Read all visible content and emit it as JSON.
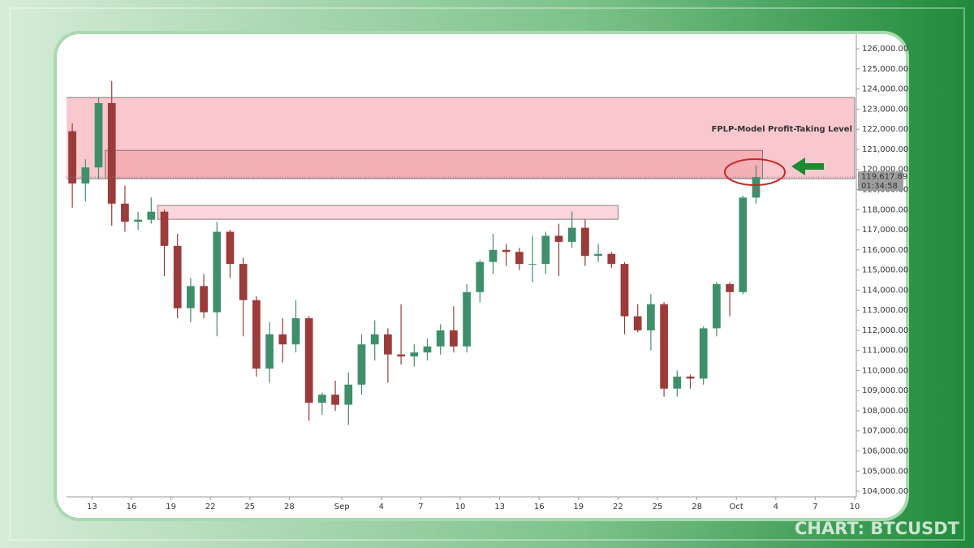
{
  "chart_data": {
    "type": "candlestick",
    "symbol_caption": "CHART: BTCUSDT",
    "x": [
      "Aug 11",
      "Aug 12",
      "Aug 13",
      "Aug 14",
      "Aug 15",
      "Aug 16",
      "Aug 17",
      "Aug 18",
      "Aug 19",
      "Aug 20",
      "Aug 21",
      "Aug 22",
      "Aug 23",
      "Aug 24",
      "Aug 25",
      "Aug 26",
      "Aug 27",
      "Aug 28",
      "Aug 29",
      "Aug 30",
      "Aug 31",
      "Sep 1",
      "Sep 2",
      "Sep 3",
      "Sep 4",
      "Sep 5",
      "Sep 6",
      "Sep 7",
      "Sep 8",
      "Sep 9",
      "Sep 10",
      "Sep 11",
      "Sep 12",
      "Sep 13",
      "Sep 14",
      "Sep 15",
      "Sep 16",
      "Sep 17",
      "Sep 18",
      "Sep 19",
      "Sep 20",
      "Sep 21",
      "Sep 22",
      "Sep 23",
      "Sep 24",
      "Sep 25",
      "Sep 26",
      "Sep 27",
      "Sep 28",
      "Sep 29",
      "Sep 30",
      "Oct 1",
      "Oct 2"
    ],
    "open": [
      121900,
      119300,
      120100,
      123300,
      118300,
      117400,
      117500,
      117900,
      116200,
      113100,
      114200,
      112900,
      116900,
      115300,
      113500,
      110100,
      111800,
      111300,
      112600,
      108400,
      108800,
      108300,
      109300,
      111300,
      111800,
      110800,
      110700,
      110900,
      111200,
      112000,
      111200,
      113900,
      115400,
      116000,
      115900,
      115300,
      115300,
      116700,
      116400,
      117100,
      115700,
      115800,
      115300,
      112700,
      112000,
      113300,
      109100,
      109700,
      109600,
      112100,
      114300,
      113900,
      118600
    ],
    "high": [
      122300,
      120500,
      123600,
      124400,
      119200,
      117900,
      118600,
      118000,
      116800,
      114600,
      114800,
      117400,
      117000,
      115600,
      113700,
      112400,
      112600,
      113500,
      112700,
      108900,
      109500,
      109900,
      111800,
      112500,
      112100,
      113300,
      111300,
      111600,
      112300,
      113200,
      114300,
      115500,
      116800,
      116300,
      116100,
      116700,
      116900,
      117300,
      117900,
      117500,
      116300,
      115900,
      115400,
      113300,
      113800,
      113400,
      110000,
      109800,
      112200,
      114400,
      114400,
      118700,
      120200
    ],
    "low": [
      118100,
      118400,
      119500,
      117200,
      116900,
      117000,
      117300,
      114700,
      112600,
      112400,
      112600,
      111700,
      114600,
      111700,
      109700,
      109400,
      110400,
      110900,
      107500,
      107800,
      108000,
      107300,
      108800,
      110500,
      109400,
      110300,
      110200,
      110500,
      110800,
      110900,
      110900,
      113400,
      114800,
      115200,
      115000,
      114400,
      114800,
      114700,
      116100,
      115200,
      115400,
      115100,
      111800,
      111900,
      111000,
      108700,
      108700,
      109100,
      109300,
      111700,
      112700,
      113800,
      118300
    ],
    "close": [
      119300,
      120100,
      123300,
      118300,
      117400,
      117500,
      117900,
      116200,
      113100,
      114200,
      112900,
      116900,
      115300,
      113500,
      110100,
      111800,
      111300,
      112600,
      108400,
      108800,
      108300,
      109300,
      111300,
      111800,
      110800,
      110700,
      110900,
      111200,
      112000,
      111200,
      113900,
      115400,
      116000,
      115900,
      115300,
      115300,
      116700,
      116400,
      117100,
      115700,
      115800,
      115300,
      112700,
      112000,
      113300,
      109100,
      109700,
      109600,
      112100,
      114300,
      113900,
      118600,
      119617.89
    ],
    "up_color": "#3f8f6b",
    "down_color": "#9b3b3b",
    "xlim": [
      "Aug 11",
      "Oct 10"
    ],
    "xticks": [
      {
        "value": "Aug 13",
        "label": "13"
      },
      {
        "value": "Aug 16",
        "label": "16"
      },
      {
        "value": "Aug 19",
        "label": "19"
      },
      {
        "value": "Aug 22",
        "label": "22"
      },
      {
        "value": "Aug 25",
        "label": "25"
      },
      {
        "value": "Aug 28",
        "label": "28"
      },
      {
        "value": "Sep 1",
        "label": "Sep"
      },
      {
        "value": "Sep 4",
        "label": "4"
      },
      {
        "value": "Sep 7",
        "label": "7"
      },
      {
        "value": "Sep 10",
        "label": "10"
      },
      {
        "value": "Sep 13",
        "label": "13"
      },
      {
        "value": "Sep 16",
        "label": "16"
      },
      {
        "value": "Sep 19",
        "label": "19"
      },
      {
        "value": "Sep 22",
        "label": "22"
      },
      {
        "value": "Sep 25",
        "label": "25"
      },
      {
        "value": "Sep 28",
        "label": "28"
      },
      {
        "value": "Oct 1",
        "label": "Oct"
      },
      {
        "value": "Oct 4",
        "label": "4"
      },
      {
        "value": "Oct 7",
        "label": "7"
      },
      {
        "value": "Oct 10",
        "label": "10"
      }
    ],
    "ylim": [
      103800,
      126730
    ],
    "yticks": [
      {
        "value": 104000,
        "label": "104,000.00"
      },
      {
        "value": 105000,
        "label": "105,000.00"
      },
      {
        "value": 106000,
        "label": "106,000.00"
      },
      {
        "value": 107000,
        "label": "107,000.00"
      },
      {
        "value": 108000,
        "label": "108,000.00"
      },
      {
        "value": 109000,
        "label": "109,000.00"
      },
      {
        "value": 110000,
        "label": "110,000.00"
      },
      {
        "value": 111000,
        "label": "111,000.00"
      },
      {
        "value": 112000,
        "label": "112,000.00"
      },
      {
        "value": 113000,
        "label": "113,000.00"
      },
      {
        "value": 114000,
        "label": "114,000.00"
      },
      {
        "value": 115000,
        "label": "115,000.00"
      },
      {
        "value": 116000,
        "label": "116,000.00"
      },
      {
        "value": 117000,
        "label": "117,000.00"
      },
      {
        "value": 118000,
        "label": "118,000.00"
      },
      {
        "value": 119000,
        "label": "119,000.00"
      },
      {
        "value": 120000,
        "label": "120,000.00"
      },
      {
        "value": 121000,
        "label": "121,000.00"
      },
      {
        "value": 122000,
        "label": "122,000.00"
      },
      {
        "value": 123000,
        "label": "123,000.00"
      },
      {
        "value": 124000,
        "label": "124,000.00"
      },
      {
        "value": 125000,
        "label": "125,000.00"
      },
      {
        "value": 126000,
        "label": "126,000.00"
      }
    ],
    "last_price": {
      "value": 119617.89,
      "label": "119,617.89"
    },
    "countdown": "01:34:58",
    "zones": [
      {
        "from": 123578,
        "to": 119540,
        "start": "Aug 11",
        "end": "Oct 10",
        "color": "rgba(240,110,125,0.38)"
      },
      {
        "from": 120950,
        "to": 119540,
        "start": "Aug 14",
        "end": "Oct 3",
        "color": "rgba(235,100,115,0.25)"
      },
      {
        "from": 118210,
        "to": 117520,
        "start": "Aug 18",
        "end": "Sep 22",
        "color": "rgba(245,150,160,0.4)"
      }
    ],
    "annotation": {
      "text": "FPLP-Model Profit-Taking Level",
      "value": 122000
    }
  }
}
